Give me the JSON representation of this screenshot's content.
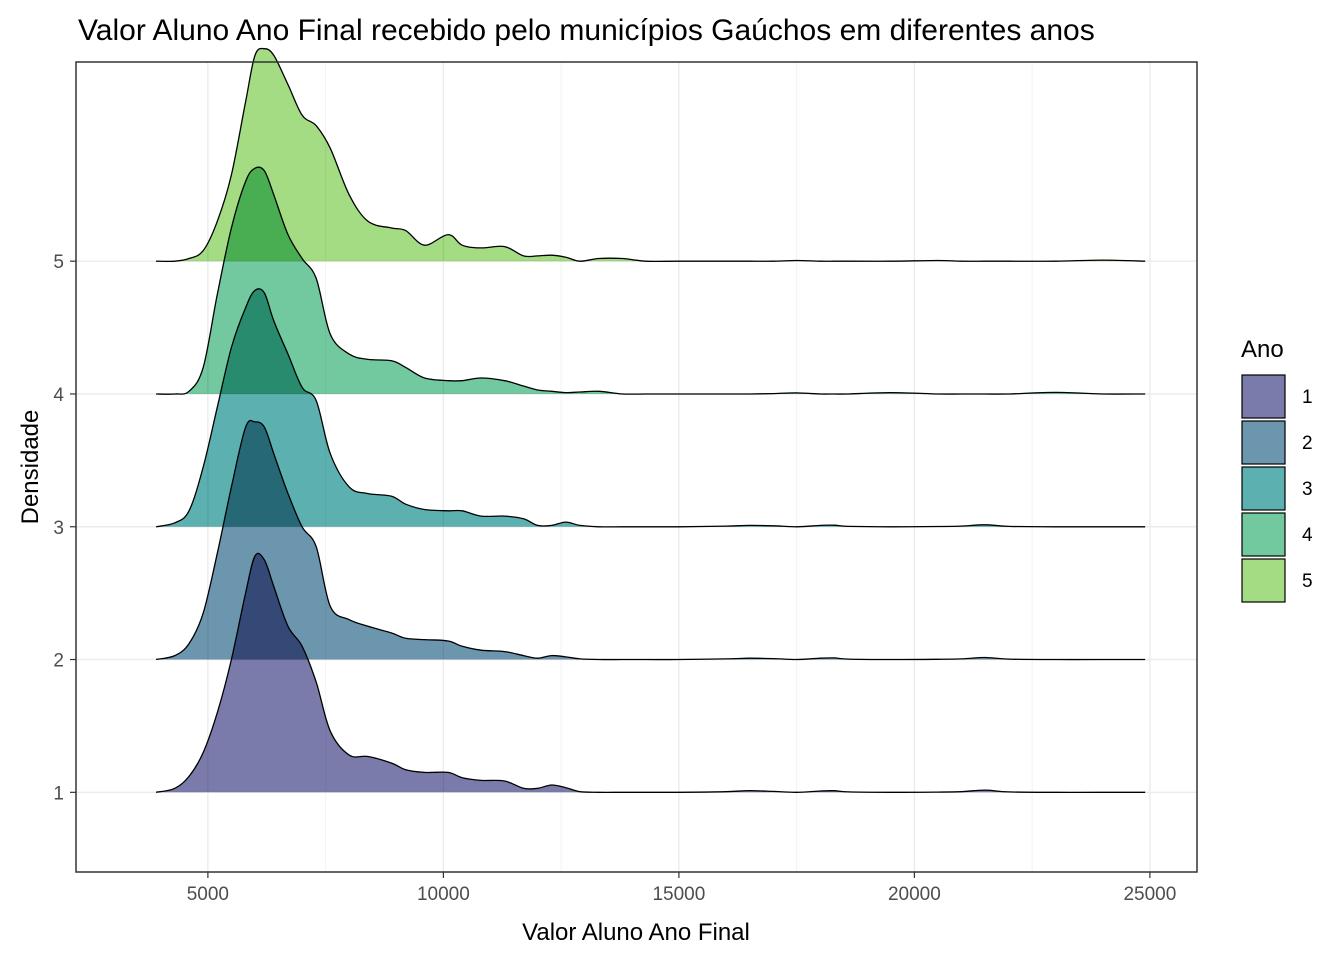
{
  "chart_data": {
    "type": "ridgeline",
    "title": "Valor Aluno Ano Final recebido pelo municípios Gaúchos em diferentes anos",
    "xlabel": "Valor Aluno Ano Final",
    "ylabel": "Densidade",
    "xlim": [
      2200,
      26000
    ],
    "ylim": [
      0.4,
      6.5
    ],
    "x_ticks": [
      "5000",
      "10000",
      "15000",
      "20000",
      "25000"
    ],
    "x_tick_values": [
      5000,
      10000,
      15000,
      20000,
      25000
    ],
    "y_ticks": [
      "1",
      "2",
      "3",
      "4",
      "5"
    ],
    "y_tick_values": [
      1,
      2,
      3,
      4,
      5
    ],
    "grid": true,
    "legend": {
      "title": "Ano",
      "position": "right"
    },
    "series": [
      {
        "name": "1",
        "color": "#7b7bab",
        "baseline": 1,
        "x": [
          3900,
          4300,
          4600,
          4900,
          5200,
          5500,
          5800,
          6000,
          6200,
          6400,
          6700,
          7000,
          7300,
          7600,
          8000,
          8400,
          8900,
          9200,
          9600,
          10100,
          10400,
          10800,
          11300,
          11700,
          12000,
          12300,
          12600,
          12900,
          13300,
          13800,
          14300,
          15000,
          16000,
          16500,
          17000,
          17500,
          18000,
          18300,
          18600,
          19500,
          20500,
          21000,
          21500,
          22000,
          23000,
          24000,
          24900
        ],
        "y": [
          1.0,
          1.03,
          1.12,
          1.3,
          1.6,
          2.0,
          2.5,
          2.78,
          2.75,
          2.55,
          2.25,
          2.1,
          1.83,
          1.46,
          1.28,
          1.27,
          1.22,
          1.17,
          1.15,
          1.15,
          1.11,
          1.09,
          1.085,
          1.03,
          1.03,
          1.055,
          1.035,
          1.005,
          1.0,
          1.0,
          1.0,
          1.0,
          1.005,
          1.013,
          1.007,
          1.0,
          1.01,
          1.012,
          1.003,
          1.0,
          1.002,
          1.005,
          1.017,
          1.003,
          1.0,
          1.0,
          1.0
        ]
      },
      {
        "name": "2",
        "color": "#6c96ae",
        "baseline": 2,
        "x": [
          3900,
          4300,
          4600,
          4900,
          5200,
          5500,
          5800,
          6000,
          6200,
          6400,
          6700,
          7000,
          7300,
          7600,
          8000,
          8400,
          8900,
          9200,
          9600,
          10100,
          10400,
          10800,
          11300,
          11700,
          12000,
          12300,
          12600,
          12900,
          13300,
          13800,
          14300,
          15000,
          16000,
          16500,
          17000,
          17500,
          18000,
          18300,
          18600,
          19500,
          20500,
          21000,
          21500,
          22000,
          23000,
          24000,
          24900
        ],
        "y": [
          2.0,
          2.03,
          2.12,
          2.35,
          2.8,
          3.3,
          3.75,
          3.79,
          3.75,
          3.55,
          3.25,
          3.0,
          2.85,
          2.4,
          2.3,
          2.25,
          2.2,
          2.16,
          2.15,
          2.14,
          2.1,
          2.07,
          2.06,
          2.03,
          2.01,
          2.03,
          2.02,
          2.005,
          2.0,
          2.0,
          2.0,
          2.0,
          2.005,
          2.01,
          2.007,
          2.0,
          2.01,
          2.012,
          2.003,
          2.0,
          2.002,
          2.005,
          2.015,
          2.003,
          2.0,
          2.0,
          2.0
        ]
      },
      {
        "name": "3",
        "color": "#5cb0af",
        "baseline": 3,
        "x": [
          3900,
          4300,
          4600,
          4900,
          5200,
          5500,
          5800,
          6000,
          6200,
          6400,
          6700,
          7000,
          7300,
          7600,
          8000,
          8400,
          8900,
          9200,
          9600,
          10100,
          10400,
          10800,
          11300,
          11700,
          12000,
          12300,
          12600,
          12900,
          13300,
          13800,
          14300,
          15000,
          16000,
          16500,
          17000,
          17500,
          18000,
          18300,
          18600,
          19500,
          20500,
          21000,
          21500,
          22000,
          23000,
          24000,
          24900
        ],
        "y": [
          3.0,
          3.03,
          3.12,
          3.45,
          3.9,
          4.35,
          4.65,
          4.78,
          4.76,
          4.55,
          4.3,
          4.05,
          3.95,
          3.55,
          3.3,
          3.25,
          3.23,
          3.17,
          3.13,
          3.12,
          3.12,
          3.08,
          3.08,
          3.06,
          3.01,
          3.01,
          3.035,
          3.01,
          3.0,
          3.0,
          3.0,
          3.0,
          3.005,
          3.01,
          3.007,
          3.0,
          3.01,
          3.012,
          3.003,
          3.0,
          3.002,
          3.005,
          3.015,
          3.003,
          3.0,
          3.0,
          3.0
        ]
      },
      {
        "name": "4",
        "color": "#72c9a0",
        "baseline": 4,
        "x": [
          3900,
          4300,
          4600,
          4900,
          5200,
          5500,
          5800,
          6000,
          6200,
          6400,
          6700,
          7000,
          7300,
          7600,
          8000,
          8400,
          8900,
          9200,
          9600,
          10100,
          10400,
          10800,
          11300,
          11700,
          12000,
          12300,
          12600,
          12900,
          13300,
          13800,
          14300,
          15000,
          16000,
          16500,
          17000,
          17500,
          18000,
          18300,
          18600,
          19500,
          20500,
          21000,
          21500,
          22000,
          23000,
          24000,
          24900
        ],
        "y": [
          4.0,
          4.0,
          4.02,
          4.2,
          4.75,
          5.25,
          5.6,
          5.7,
          5.68,
          5.5,
          5.2,
          5.02,
          4.87,
          4.45,
          4.3,
          4.26,
          4.25,
          4.2,
          4.12,
          4.1,
          4.1,
          4.12,
          4.1,
          4.06,
          4.03,
          4.02,
          4.01,
          4.015,
          4.02,
          4.0,
          4.0,
          4.0,
          4.0,
          4.0,
          4.003,
          4.008,
          4.0,
          4.0,
          4.0,
          4.01,
          4.0,
          4.0,
          4.0,
          4.0,
          4.012,
          4.0,
          4.0
        ]
      },
      {
        "name": "5",
        "color": "#a3dc83",
        "baseline": 5,
        "x": [
          3900,
          4300,
          4600,
          4900,
          5200,
          5500,
          5800,
          6000,
          6200,
          6400,
          6700,
          7000,
          7300,
          7600,
          8000,
          8400,
          8900,
          9200,
          9600,
          10100,
          10400,
          10800,
          11300,
          11700,
          12000,
          12300,
          12600,
          12900,
          13300,
          13800,
          14300,
          15000,
          16000,
          16500,
          17000,
          17500,
          18000,
          18300,
          18600,
          19500,
          20500,
          21000,
          21500,
          22000,
          23000,
          24000,
          24900
        ],
        "y": [
          5.0,
          5.0,
          5.02,
          5.08,
          5.3,
          5.65,
          6.2,
          6.55,
          6.6,
          6.55,
          6.33,
          6.1,
          6.02,
          5.85,
          5.5,
          5.3,
          5.25,
          5.23,
          5.12,
          5.2,
          5.12,
          5.1,
          5.11,
          5.04,
          5.04,
          5.045,
          5.03,
          5.0,
          5.02,
          5.02,
          5.0,
          5.0,
          5.0,
          5.0,
          5.0,
          5.005,
          5.0,
          5.0,
          5.0,
          5.0,
          5.005,
          5.0,
          5.0,
          5.0,
          5.0,
          5.008,
          5.0
        ]
      }
    ]
  }
}
